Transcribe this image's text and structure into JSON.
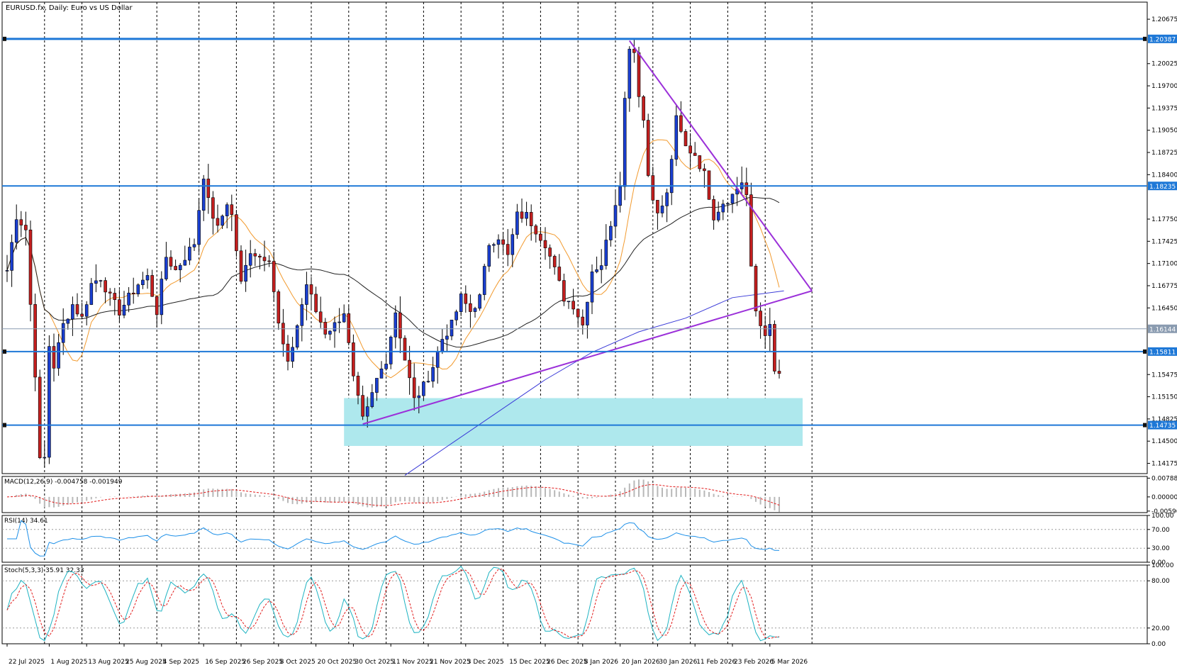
{
  "header": {
    "title": "EURUSD.fx, Daily:  Euro vs US Dollar"
  },
  "chart_data": {
    "type": "candlestick",
    "title": "EURUSD.fx, Daily:  Euro vs US Dollar",
    "price_range": [
      1.14025,
      1.20925
    ],
    "price_ticks": [
      "1.20675",
      "1.20025",
      "1.19700",
      "1.19375",
      "1.19050",
      "1.18725",
      "1.18400",
      "1.17750",
      "1.17425",
      "1.17100",
      "1.16775",
      "1.16450",
      "1.15475",
      "1.15150",
      "1.14825",
      "1.14500",
      "1.14175"
    ],
    "bar_count": 166,
    "date_labels": [
      {
        "bar": 0,
        "text": "22 Jul 2025"
      },
      {
        "bar": 9,
        "text": "1 Aug 2025"
      },
      {
        "bar": 17,
        "text": "13 Aug 2025"
      },
      {
        "bar": 25,
        "text": "25 Aug 2025"
      },
      {
        "bar": 33,
        "text": "4 Sep 2025"
      },
      {
        "bar": 42,
        "text": "16 Sep 2025"
      },
      {
        "bar": 50,
        "text": "26 Sep 2025"
      },
      {
        "bar": 58,
        "text": "8 Oct 2025"
      },
      {
        "bar": 66,
        "text": "20 Oct 2025"
      },
      {
        "bar": 74,
        "text": "30 Oct 2025"
      },
      {
        "bar": 82,
        "text": "11 Nov 2025"
      },
      {
        "bar": 90,
        "text": "21 Nov 2025"
      },
      {
        "bar": 98,
        "text": "3 Dec 2025"
      },
      {
        "bar": 107,
        "text": "15 Dec 2025"
      },
      {
        "bar": 115,
        "text": "26 Dec 2025"
      },
      {
        "bar": 123,
        "text": "8 Jan 2026"
      },
      {
        "bar": 131,
        "text": "20 Jan 2026"
      },
      {
        "bar": 139,
        "text": "30 Jan 2026"
      },
      {
        "bar": 147,
        "text": "11 Feb 2026"
      },
      {
        "bar": 155,
        "text": "23 Feb 2026"
      },
      {
        "bar": 163,
        "text": "5 Mar 2026"
      }
    ],
    "vertical_gridlines_bars": [
      8,
      16,
      24,
      32,
      41,
      49,
      57,
      65,
      73,
      81,
      89,
      97,
      106,
      114,
      122,
      130,
      138,
      146,
      154,
      162,
      172
    ],
    "anchors": [
      [
        0,
        1.17
      ],
      [
        2,
        1.178
      ],
      [
        4,
        1.176
      ],
      [
        5,
        1.165
      ],
      [
        6,
        1.155
      ],
      [
        7,
        1.142
      ],
      [
        8,
        1.1425
      ],
      [
        9,
        1.159
      ],
      [
        10,
        1.156
      ],
      [
        12,
        1.162
      ],
      [
        14,
        1.165
      ],
      [
        16,
        1.163
      ],
      [
        18,
        1.168
      ],
      [
        20,
        1.169
      ],
      [
        22,
        1.166
      ],
      [
        24,
        1.164
      ],
      [
        26,
        1.166
      ],
      [
        28,
        1.168
      ],
      [
        30,
        1.169
      ],
      [
        32,
        1.164
      ],
      [
        34,
        1.172
      ],
      [
        36,
        1.17
      ],
      [
        38,
        1.172
      ],
      [
        40,
        1.174
      ],
      [
        42,
        1.184
      ],
      [
        43,
        1.18
      ],
      [
        45,
        1.176
      ],
      [
        47,
        1.18
      ],
      [
        48,
        1.178
      ],
      [
        50,
        1.168
      ],
      [
        52,
        1.173
      ],
      [
        54,
        1.172
      ],
      [
        56,
        1.172
      ],
      [
        58,
        1.162
      ],
      [
        60,
        1.156
      ],
      [
        62,
        1.162
      ],
      [
        64,
        1.168
      ],
      [
        66,
        1.164
      ],
      [
        68,
        1.161
      ],
      [
        70,
        1.162
      ],
      [
        72,
        1.164
      ],
      [
        74,
        1.154
      ],
      [
        76,
        1.148
      ],
      [
        77,
        1.1495
      ],
      [
        79,
        1.154
      ],
      [
        81,
        1.157
      ],
      [
        83,
        1.164
      ],
      [
        85,
        1.157
      ],
      [
        87,
        1.151
      ],
      [
        89,
        1.153
      ],
      [
        91,
        1.156
      ],
      [
        93,
        1.16
      ],
      [
        95,
        1.162
      ],
      [
        97,
        1.166
      ],
      [
        99,
        1.164
      ],
      [
        101,
        1.166
      ],
      [
        103,
        1.174
      ],
      [
        105,
        1.175
      ],
      [
        107,
        1.172
      ],
      [
        109,
        1.178
      ],
      [
        111,
        1.178
      ],
      [
        113,
        1.176
      ],
      [
        115,
        1.174
      ],
      [
        117,
        1.17
      ],
      [
        119,
        1.166
      ],
      [
        121,
        1.165
      ],
      [
        123,
        1.162
      ],
      [
        125,
        1.17
      ],
      [
        127,
        1.171
      ],
      [
        129,
        1.177
      ],
      [
        131,
        1.183
      ],
      [
        132,
        1.195
      ],
      [
        133,
        1.203
      ],
      [
        134,
        1.202
      ],
      [
        135,
        1.196
      ],
      [
        136,
        1.192
      ],
      [
        137,
        1.184
      ],
      [
        139,
        1.178
      ],
      [
        141,
        1.181
      ],
      [
        143,
        1.192
      ],
      [
        145,
        1.188
      ],
      [
        147,
        1.187
      ],
      [
        149,
        1.184
      ],
      [
        151,
        1.178
      ],
      [
        153,
        1.18
      ],
      [
        155,
        1.181
      ],
      [
        157,
        1.183
      ],
      [
        158,
        1.181
      ],
      [
        159,
        1.17
      ],
      [
        160,
        1.164
      ],
      [
        161,
        1.162
      ],
      [
        162,
        1.161
      ],
      [
        163,
        1.1615
      ],
      [
        164,
        1.155
      ]
    ],
    "price_levels": [
      {
        "label": "1.20387",
        "value": 1.20387,
        "color": "#1e78d7",
        "width": 3,
        "handles": true
      },
      {
        "label": "1.18235",
        "value": 1.18235,
        "color": "#1e78d7",
        "width": 2,
        "handles": false
      },
      {
        "label": "1.16144",
        "value": 1.16144,
        "color": "#8a9bb0",
        "width": 1,
        "handles": false
      },
      {
        "label": "1.15811",
        "value": 1.15811,
        "color": "#1e78d7",
        "width": 2,
        "handles": true
      },
      {
        "label": "1.14735",
        "value": 1.14735,
        "color": "#1e78d7",
        "width": 2,
        "handles": true
      }
    ],
    "zone": {
      "bar_from": 72,
      "bar_to": 170,
      "price_top": 1.1513,
      "price_bottom": 1.1443,
      "color": "#aee8ed"
    },
    "trendlines": [
      {
        "from": [
          76,
          1.1475
        ],
        "to": [
          172,
          1.167
        ],
        "color": "#9b30d9"
      },
      {
        "from": [
          133,
          1.2036
        ],
        "to": [
          172,
          1.167
        ],
        "color": "#9b30d9"
      }
    ],
    "moving_averages": [
      {
        "name": "fast",
        "color": "#f29a2e",
        "period": 10
      },
      {
        "name": "slow",
        "color": "#222222",
        "period": 40
      },
      {
        "name": "long",
        "color": "#3b3bd8",
        "period": 200,
        "points": [
          [
            85,
            1.14
          ],
          [
            100,
            1.147
          ],
          [
            115,
            1.154
          ],
          [
            125,
            1.158
          ],
          [
            135,
            1.161
          ],
          [
            145,
            1.163
          ],
          [
            155,
            1.166
          ],
          [
            166,
            1.167
          ]
        ]
      }
    ],
    "indicators": {
      "macd": {
        "label": "MACD(12,26,9) -0.004758 -0.001949",
        "ticks": [
          "0.007888",
          "0.000000",
          "-0.005960"
        ],
        "range": [
          -0.0066,
          0.0086
        ]
      },
      "rsi": {
        "label": "RSI(14) 34.61",
        "ticks": [
          "100.00",
          "70.00",
          "30.00",
          "0.00"
        ],
        "range": [
          0,
          100
        ],
        "levels": [
          70,
          30
        ]
      },
      "stoch": {
        "label": "Stoch(5,3,3) 35.91 32.33",
        "ticks": [
          "100.00",
          "80.00",
          "20.00",
          "0.00"
        ],
        "range": [
          0,
          100
        ],
        "levels": [
          80,
          20
        ]
      }
    }
  }
}
